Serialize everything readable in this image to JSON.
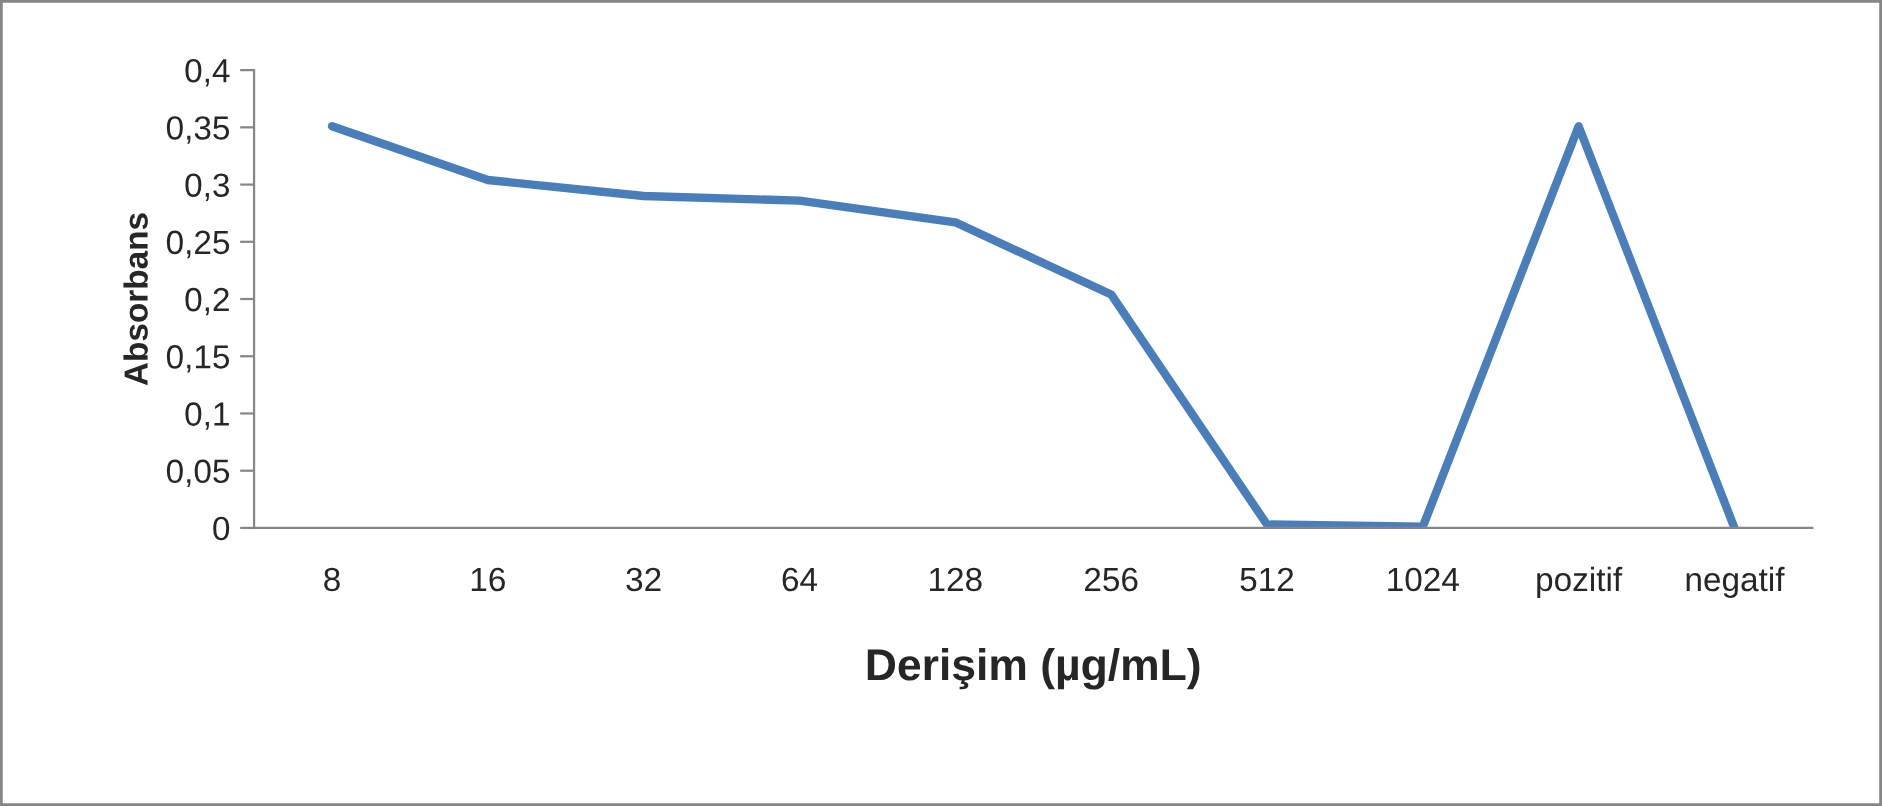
{
  "chart_data": {
    "type": "line",
    "xlabel": "Derişim (µg/mL)",
    "ylabel": "Absorbans",
    "categories": [
      "8",
      "16",
      "32",
      "64",
      "128",
      "256",
      "512",
      "1024",
      "pozitif",
      "negatif"
    ],
    "series": [
      {
        "color": "#4a7ebb",
        "values": [
          0.351,
          0.304,
          0.29,
          0.286,
          0.267,
          0.204,
          0.003,
          0.001,
          0.351,
          0.0
        ]
      }
    ],
    "ylim": [
      0,
      0.4
    ],
    "yticks": [
      {
        "value": 0,
        "label": "0"
      },
      {
        "value": 0.05,
        "label": "0,05"
      },
      {
        "value": 0.1,
        "label": "0,1"
      },
      {
        "value": 0.15,
        "label": "0,15"
      },
      {
        "value": 0.2,
        "label": "0,2"
      },
      {
        "value": 0.25,
        "label": "0,25"
      },
      {
        "value": 0.3,
        "label": "0,3"
      },
      {
        "value": 0.35,
        "label": "0,35"
      },
      {
        "value": 0.4,
        "label": "0,4"
      }
    ],
    "grid": false,
    "legend": false,
    "marker": "none",
    "line_style": "solid"
  }
}
